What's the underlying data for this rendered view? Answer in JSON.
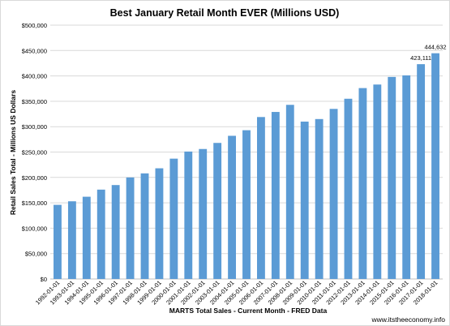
{
  "chart_data": {
    "type": "bar",
    "title": "Best January Retail Month EVER (Millions USD)",
    "xlabel": "MARTS Total Sales - Current Month - FRED Data",
    "ylabel": "Retail Sales Total - Millions US Dollars",
    "watermark": "www.itstheeconomy.info",
    "ylim": [
      0,
      500000
    ],
    "yticks": [
      "$0",
      "$50,000",
      "$100,000",
      "$150,000",
      "$200,000",
      "$250,000",
      "$300,000",
      "$350,000",
      "$400,000",
      "$450,000",
      "$500,000"
    ],
    "ytick_values": [
      0,
      50000,
      100000,
      150000,
      200000,
      250000,
      300000,
      350000,
      400000,
      450000,
      500000
    ],
    "categories": [
      "1992-01-01",
      "1993-01-01",
      "1994-01-01",
      "1995-01-01",
      "1996-01-01",
      "1997-01-01",
      "1998-01-01",
      "1999-01-01",
      "2000-01-01",
      "2001-01-01",
      "2002-01-01",
      "2003-01-01",
      "2004-01-01",
      "2005-01-01",
      "2006-01-01",
      "2007-01-01",
      "2008-01-01",
      "2009-01-01",
      "2010-01-01",
      "2011-01-01",
      "2012-01-01",
      "2013-01-01",
      "2014-01-01",
      "2015-01-01",
      "2016-01-01",
      "2017-01-01",
      "2018-01-01"
    ],
    "values": [
      146000,
      153000,
      162000,
      176000,
      185000,
      200000,
      208000,
      218000,
      237000,
      251000,
      256000,
      268000,
      282000,
      293000,
      319000,
      329000,
      343000,
      310000,
      315000,
      335000,
      355000,
      376000,
      383000,
      398000,
      401000,
      423111,
      444632
    ],
    "data_labels": [
      "",
      "",
      "",
      "",
      "",
      "",
      "",
      "",
      "",
      "",
      "",
      "",
      "",
      "",
      "",
      "",
      "",
      "",
      "",
      "",
      "",
      "",
      "",
      "",
      "",
      "423,111",
      "444,632"
    ],
    "grid": true,
    "bar_color": "#5b9bd5",
    "grid_color": "#d9d9d9"
  }
}
